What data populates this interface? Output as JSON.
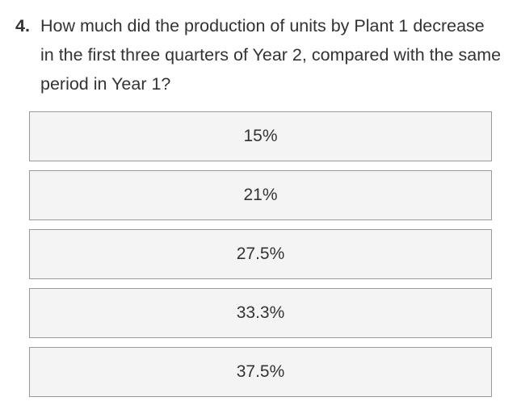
{
  "question": {
    "number": "4.",
    "text": "How much did the production of units by Plant 1 decrease in the first three quarters of Year 2, compared with the same period in Year 1?"
  },
  "options": [
    {
      "label": "15%"
    },
    {
      "label": "21%"
    },
    {
      "label": "27.5%"
    },
    {
      "label": "33.3%"
    },
    {
      "label": "37.5%"
    }
  ]
}
